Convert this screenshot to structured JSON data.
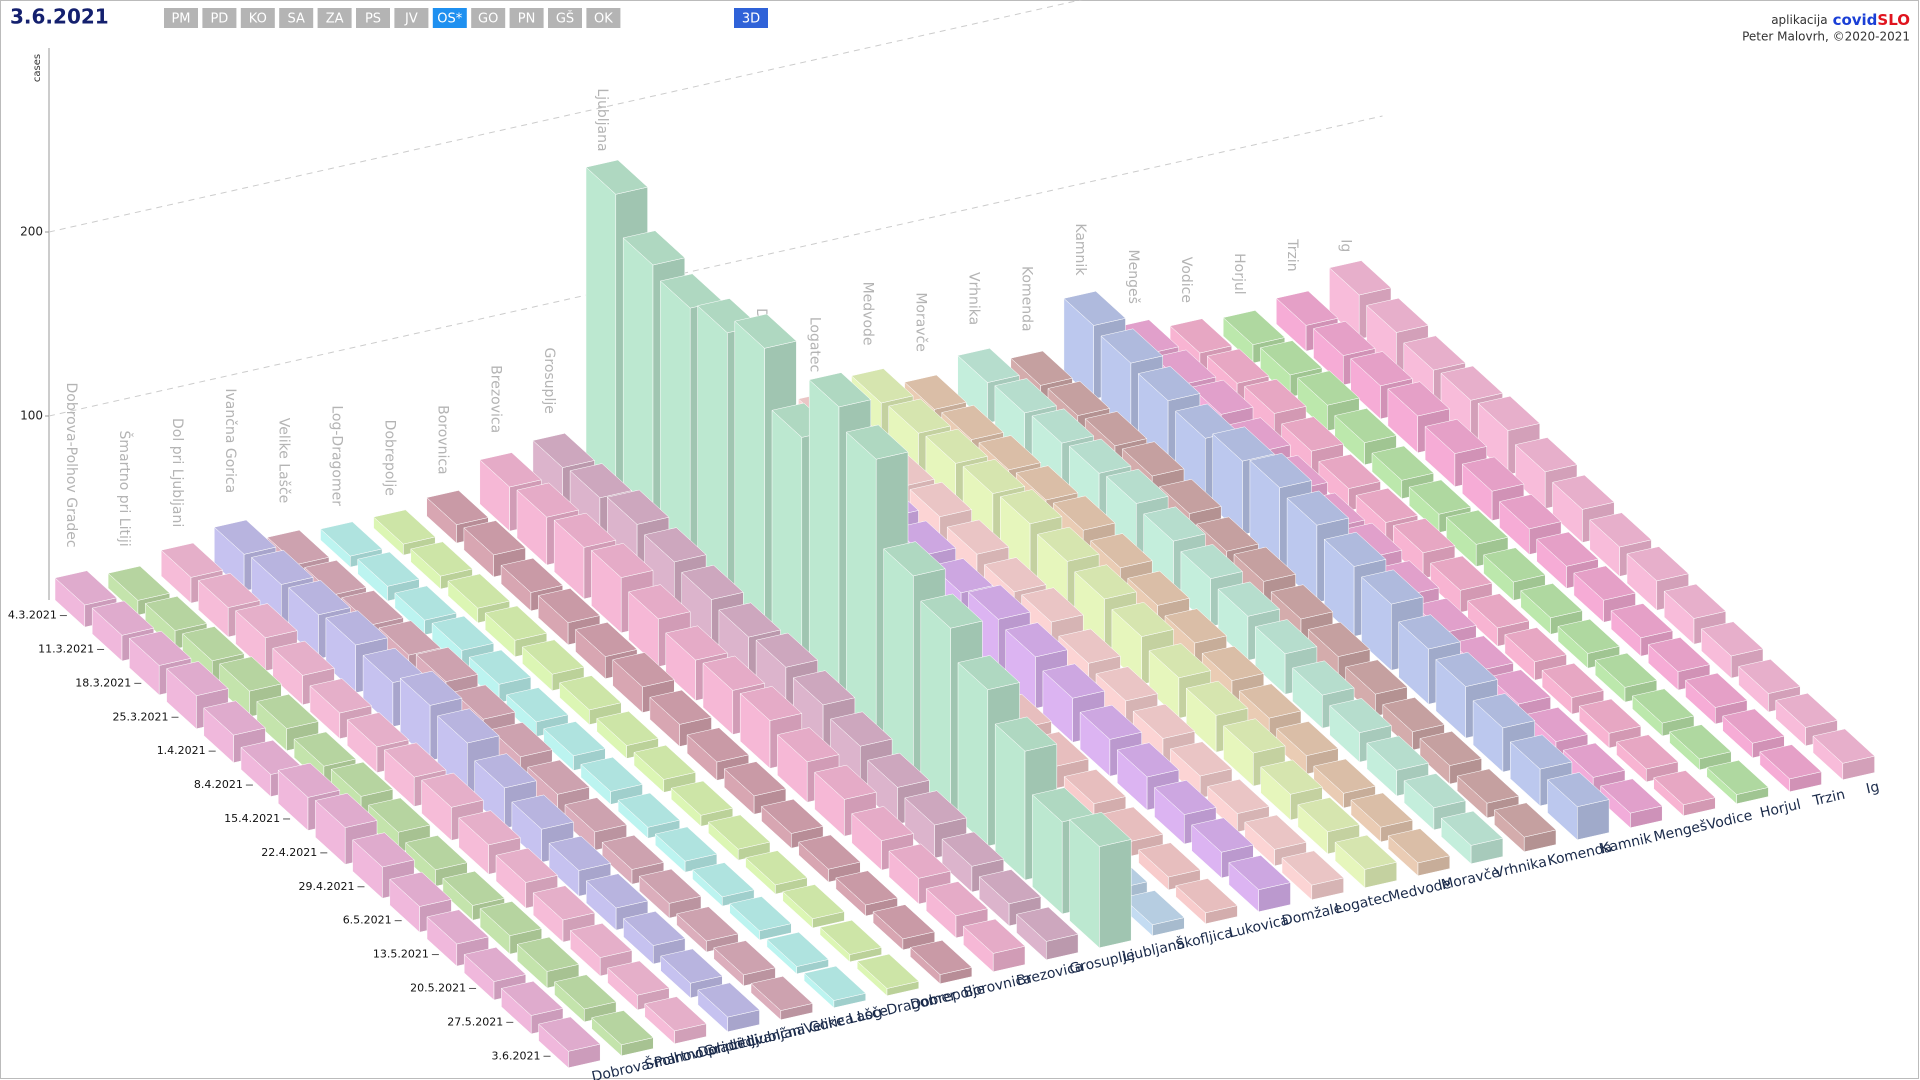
{
  "ui": {
    "buttons": [
      "PM",
      "PD",
      "KO",
      "SA",
      "ZA",
      "PS",
      "JV",
      "OS*",
      "GO",
      "PN",
      "GŠ",
      "OK"
    ],
    "active_button": 7,
    "view_toggle": "3D",
    "app_prefix": "aplikacija",
    "brand_a": "covid",
    "brand_b": "SLO",
    "author": "Peter Malovrh, ©2020-2021"
  },
  "chart_data": {
    "type": "bar3d",
    "title": "3.6.2021",
    "ylabel": "cases",
    "x": [
      "4.3.2021",
      "11.3.2021",
      "18.3.2021",
      "25.3.2021",
      "1.4.2021",
      "8.4.2021",
      "15.4.2021",
      "22.4.2021",
      "29.4.2021",
      "6.5.2021",
      "13.5.2021",
      "20.5.2021",
      "27.5.2021",
      "3.6.2021"
    ],
    "ylim": [
      0,
      300
    ],
    "yticks": [
      100,
      200
    ],
    "grid": true,
    "series": [
      {
        "name": "Dobrova-Polhov Gradec",
        "color": "#f0b8dc",
        "values": [
          12,
          14,
          16,
          18,
          15,
          12,
          18,
          20,
          17,
          14,
          12,
          10,
          10,
          9
        ]
      },
      {
        "name": "Šmartno pri Litiji",
        "color": "#c4e4ac",
        "values": [
          8,
          10,
          12,
          14,
          12,
          10,
          12,
          11,
          9,
          8,
          10,
          9,
          7,
          6
        ]
      },
      {
        "name": "Dol pri Ljubljani",
        "color": "#f6bcd8",
        "values": [
          14,
          16,
          18,
          16,
          14,
          14,
          16,
          18,
          16,
          14,
          12,
          10,
          8,
          7
        ]
      },
      {
        "name": "Ivančna Gorica",
        "color": "#c6c2f0",
        "values": [
          20,
          22,
          24,
          26,
          24,
          30,
          28,
          22,
          18,
          14,
          12,
          10,
          8,
          8
        ]
      },
      {
        "name": "Velike Lašče",
        "color": "#dcaebc",
        "values": [
          8,
          10,
          12,
          14,
          18,
          16,
          14,
          12,
          10,
          8,
          8,
          6,
          6,
          5
        ]
      },
      {
        "name": "Log-Dragomer",
        "color": "#bcf4f0",
        "values": [
          6,
          8,
          8,
          10,
          10,
          8,
          8,
          7,
          6,
          6,
          5,
          5,
          4,
          4
        ]
      },
      {
        "name": "Dobrepolje",
        "color": "#dcf6b4",
        "values": [
          6,
          7,
          8,
          9,
          9,
          8,
          7,
          7,
          6,
          6,
          5,
          5,
          4,
          4
        ]
      },
      {
        "name": "Borovnica",
        "color": "#d8a6b2",
        "values": [
          10,
          12,
          10,
          12,
          12,
          14,
          12,
          10,
          10,
          8,
          7,
          6,
          6,
          5
        ]
      },
      {
        "name": "Brezovica",
        "color": "#f6b8d6",
        "values": [
          24,
          26,
          28,
          30,
          26,
          22,
          24,
          26,
          22,
          20,
          16,
          14,
          12,
          10
        ]
      },
      {
        "name": "Grosuplje",
        "color": "#dcb4cc",
        "values": [
          28,
          30,
          34,
          32,
          30,
          28,
          30,
          28,
          24,
          20,
          18,
          14,
          12,
          10
        ]
      },
      {
        "name": "Ljubljana",
        "color": "#bce8d0",
        "values": [
          170,
          150,
          145,
          150,
          160,
          130,
          165,
          155,
          110,
          100,
          85,
          70,
          50,
          55
        ]
      },
      {
        "name": "Škofljica",
        "color": "#c4dcf2",
        "values": [
          14,
          16,
          18,
          16,
          14,
          16,
          18,
          14,
          12,
          10,
          9,
          8,
          7,
          6
        ]
      },
      {
        "name": "Lukovica",
        "color": "#f8cccc",
        "values": [
          14,
          16,
          18,
          20,
          18,
          16,
          14,
          16,
          14,
          12,
          10,
          8,
          7,
          6
        ]
      },
      {
        "name": "Domžale",
        "color": "#dcb4f2",
        "values": [
          26,
          28,
          32,
          30,
          28,
          26,
          30,
          28,
          24,
          20,
          18,
          16,
          14,
          12
        ]
      },
      {
        "name": "Logatec",
        "color": "#fcd4d4",
        "values": [
          18,
          20,
          22,
          24,
          22,
          20,
          22,
          18,
          16,
          14,
          12,
          10,
          9,
          8
        ]
      },
      {
        "name": "Medvode",
        "color": "#e6f6bc",
        "values": [
          24,
          26,
          28,
          30,
          32,
          30,
          28,
          26,
          22,
          20,
          18,
          14,
          12,
          10
        ]
      },
      {
        "name": "Moravče",
        "color": "#eaccb4",
        "values": [
          14,
          16,
          18,
          20,
          22,
          20,
          18,
          16,
          14,
          12,
          10,
          8,
          8,
          7
        ]
      },
      {
        "name": "Vrhnika",
        "color": "#c4eedc",
        "values": [
          22,
          24,
          26,
          28,
          30,
          28,
          26,
          24,
          22,
          18,
          16,
          14,
          12,
          10
        ]
      },
      {
        "name": "Komenda",
        "color": "#d4acac",
        "values": [
          14,
          16,
          18,
          20,
          18,
          16,
          18,
          16,
          14,
          12,
          10,
          10,
          8,
          8
        ]
      },
      {
        "name": "Kamnik",
        "color": "#bcc8ee",
        "values": [
          40,
          38,
          36,
          34,
          40,
          44,
          42,
          38,
          36,
          30,
          28,
          24,
          20,
          18
        ]
      },
      {
        "name": "Mengeš",
        "color": "#f2acda",
        "values": [
          18,
          20,
          22,
          20,
          18,
          16,
          18,
          16,
          14,
          12,
          12,
          10,
          9,
          8
        ]
      },
      {
        "name": "Vodice",
        "color": "#f8b4d2",
        "values": [
          12,
          14,
          16,
          14,
          12,
          12,
          14,
          12,
          10,
          10,
          9,
          8,
          7,
          6
        ]
      },
      {
        "name": "Horjul",
        "color": "#bce8ac",
        "values": [
          10,
          12,
          14,
          12,
          10,
          10,
          12,
          10,
          9,
          8,
          8,
          7,
          6,
          5
        ]
      },
      {
        "name": "Trzin",
        "color": "#f6acd6",
        "values": [
          14,
          16,
          18,
          20,
          18,
          16,
          14,
          12,
          12,
          10,
          10,
          9,
          8,
          7
        ]
      },
      {
        "name": "Ig",
        "color": "#f8bcda",
        "values": [
          24,
          22,
          20,
          22,
          24,
          20,
          18,
          16,
          16,
          14,
          12,
          10,
          10,
          9
        ]
      }
    ]
  }
}
